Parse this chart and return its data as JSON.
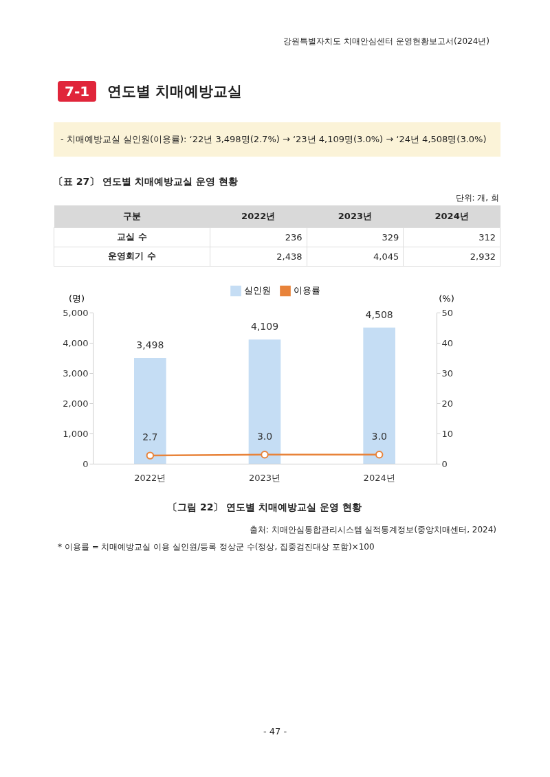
{
  "chart_data": [
    {
      "type": "other",
      "title": "〔표 27〕 연도별 치매예방교실 운영 현황",
      "xlabel": "구분",
      "categories": [
        "2022년",
        "2023년",
        "2024년"
      ],
      "annotations": [
        "강원특별자치도 치매안심센터 운영현황보고서(2024년)",
        "7-1",
        "연도별 치매예방교실",
        "- 치매예방교실 실인원(이용률): ‘22년 3,498명(2.7%) → ‘23년 4,109명(3.0%) → ‘24년 4,508명(3.0%)",
        "단위: 개, 회"
      ],
      "series": [
        {
          "name": "교실 수",
          "values": [
            236,
            329,
            312
          ],
          "value_labels": [
            "236",
            "329",
            "312"
          ]
        },
        {
          "name": "운영회기 수",
          "values": [
            2438,
            4045,
            2932
          ],
          "value_labels": [
            "2,438",
            "4,045",
            "2,932"
          ]
        }
      ]
    },
    {
      "type": "bar",
      "title": "〔그림 22〕 연도별 치매예방교실 운영 현황",
      "ylabel": "(명)",
      "y2label": "(%)",
      "categories": [
        "2022년",
        "2023년",
        "2024년"
      ],
      "series": [
        {
          "name": "실인원",
          "type": "bar",
          "color": "#c5ddf4",
          "values": [
            3498,
            4109,
            4508
          ],
          "value_labels": [
            "3,498",
            "4,109",
            "4,508"
          ]
        },
        {
          "name": "이용률",
          "type": "line",
          "axis": "y2",
          "color": "#e8833a",
          "values": [
            2.7,
            3.0,
            3.0
          ],
          "value_labels": [
            "2.7",
            "3.0",
            "3.0"
          ]
        }
      ],
      "ylim": [
        0,
        5000
      ],
      "yticks": [
        0,
        {
          "value": 1000,
          "label": "1,000"
        },
        {
          "value": 2000,
          "label": "2,000"
        },
        {
          "value": 3000,
          "label": "3,000"
        },
        {
          "value": 4000,
          "label": "4,000"
        },
        {
          "value": 5000,
          "label": "5,000"
        }
      ],
      "y2lim": [
        0,
        50
      ],
      "y2ticks": [
        0,
        10,
        20,
        30,
        40,
        50
      ],
      "legend": "top",
      "marker": "circle",
      "annotations": [
        "출처: 치매안심통합관리시스템 실적통계정보(중앙치매센터, 2024)",
        "* 이용률 = 치매예방교실 이용 실인원/등록 정상군 수(정상, 집중검진대상 포함)×100",
        "- 47 -"
      ]
    }
  ]
}
